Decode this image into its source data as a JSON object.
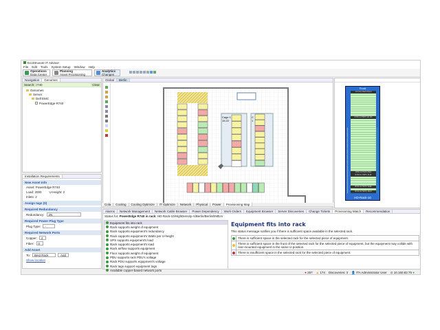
{
  "app": {
    "title": "EcoStruxure IT Advisor"
  },
  "menu": [
    "File",
    "Edit",
    "Tools",
    "System Setup",
    "Window",
    "Help"
  ],
  "perspectives": [
    {
      "title": "Operations",
      "subtitle": "Data Center"
    },
    {
      "title": "Planning",
      "subtitle": "Asset Provisioning"
    },
    {
      "title": "Analytics",
      "subtitle": "Changes"
    }
  ],
  "left": {
    "tabs": [
      "Navigation",
      "Genomes"
    ],
    "search_label": "Search:",
    "search_value": "r740",
    "clear_label": "Clear",
    "tree": [
      "Genomes",
      "Server",
      "Dell EMC",
      "PowerEdge R740"
    ]
  },
  "install": {
    "title": "Installation Requirements",
    "new_asset": "New Asset Info",
    "asset": "Asset: PowerEdge R740",
    "load": "Load: 2000",
    "u_height": "U-Height: 2",
    "inlets": "Inlets: 2",
    "assign_tags": "Assign tags (0)",
    "redundancy_h": "Required Redundancy",
    "redundancy_label": "Redundancy:",
    "redundancy_value": "2N",
    "plug_h": "Required Power Plug Type",
    "plug_label": "Plug Type:",
    "plug_value": "-",
    "network_h": "Required Network Ports",
    "copper_label": "Copper:",
    "copper_value": "2",
    "fiber_label": "Fiber:",
    "fiber_value": "0",
    "add_h": "Add Asset",
    "to_label": "To:",
    "to_value": "Best Rack",
    "add_button": "Add",
    "show_location": "Show location"
  },
  "editor": {
    "tabs": [
      "Global",
      "Berlin"
    ]
  },
  "floor": {
    "labels": {
      "cage1": "Cage 1",
      "cage1b": "15.22",
      "cage2": "C",
      "cage2b": "1"
    },
    "colors": {
      "yellow": "#f7f3a3",
      "pink": "#f4a9a9",
      "green": "#b9ebb2",
      "white": "#ffffff",
      "teal": "#8fd9b8"
    }
  },
  "rack": {
    "header": "Front",
    "top_device": "1U Front Patch Panel",
    "devices": [
      "R740 1U HMTC AF 2M",
      "R740 1U HMTC Blok",
      "R740 1U HMTC FLDr",
      "R740 1U HMTC WdEr",
      "R740 1U HMTC 3DLX"
    ],
    "name": "HD-Rack-10"
  },
  "view_tabs": [
    "Cola",
    "Cooling",
    "Cooling Optimize",
    "IT Optimize",
    "Network",
    "Physical",
    "Power",
    "Provisioning Map"
  ],
  "bottom": {
    "tabs": [
      "Alarms",
      "Network Management",
      "Network Cable Browser",
      "Power Dependency",
      "Work Orders",
      "Equipment Browser",
      "Server Discoveries",
      "Change Tickets",
      "Provisioning Match",
      "Recommendation"
    ],
    "active_tab": "Provisioning Match",
    "status_prefix": "Status for:",
    "status_asset": "PowerEdge R740",
    "status_mid": "in rack:",
    "status_rack": "HD-Rack-10/HighDensity-A/Berlin/Berlin/EMEA/",
    "checks": [
      "Equipment fits into rack",
      "Rack supports weight of equipment",
      "Rack supports equipment's redundancy",
      "Rack supports equipment's Watts per U-height",
      "UPS supports equipment's load",
      "Rack supports equipment's load",
      "Rack airflow supports equipment",
      "Floor supports weight of equipment",
      "PDU supports rack PDU's voltage",
      "Rack PDU supports equipment's voltage",
      "Rack tags support equipment tags",
      "Available copper-based network ports"
    ],
    "detail_title": "Equipment fits into rack",
    "detail_desc": "This status message notifies you if there is sufficient space available in the selected rack.",
    "legend": [
      {
        "icon": "green",
        "text": "There is sufficient space in the selected rack for the selected piece of equipment."
      },
      {
        "icon": "yellow",
        "text": "There is sufficient space in the front of the selected rack for the selected piece of equipment, but the equipment may collide with rear-mounted equipment in the same U-position."
      },
      {
        "icon": "red",
        "text": "There is insufficient space in the selected rack for the selected piece of equipment."
      }
    ]
  },
  "statusbar": {
    "errors": "257",
    "warnings": "174",
    "discoveries": "Discoveries: 3",
    "user": "ITA Administrator User",
    "ip": "10.160.82.75"
  }
}
